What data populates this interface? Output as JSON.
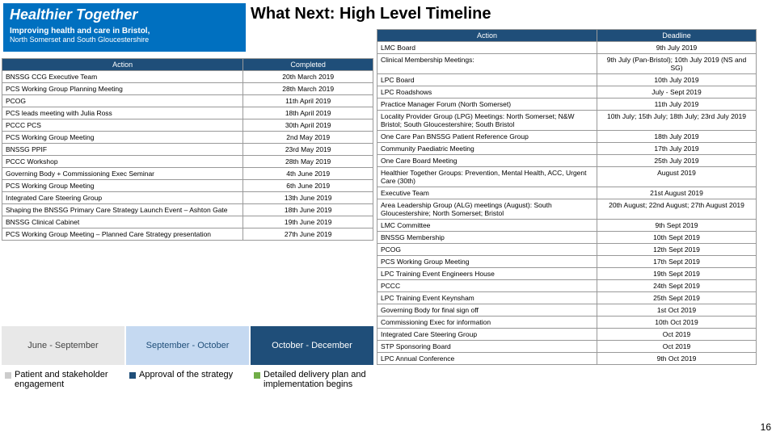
{
  "logo": {
    "main": "Healthier Together",
    "sub1": "Improving health and care in Bristol,",
    "sub2": "North Somerset and South Gloucestershire"
  },
  "title": "What Next: High Level Timeline",
  "page_num": "16",
  "left_table": {
    "headers": [
      "Action",
      "Completed"
    ],
    "rows": [
      [
        "BNSSG CCG Executive Team",
        "20th March 2019"
      ],
      [
        "PCS Working Group Planning Meeting",
        "28th March 2019"
      ],
      [
        "PCOG",
        "11th April 2019"
      ],
      [
        "PCS leads meeting with Julia Ross",
        "18th April 2019"
      ],
      [
        "PCCC PCS",
        "30th April 2019"
      ],
      [
        "PCS Working Group Meeting",
        "2nd May 2019"
      ],
      [
        "BNSSG PPIF",
        "23rd May 2019"
      ],
      [
        "PCCC Workshop",
        "28th May 2019"
      ],
      [
        "Governing Body + Commissioning Exec Seminar",
        "4th June 2019"
      ],
      [
        "PCS Working Group Meeting",
        "6th June 2019"
      ],
      [
        "Integrated Care Steering Group",
        "13th June 2019"
      ],
      [
        "Shaping the BNSSG Primary Care Strategy Launch Event – Ashton Gate",
        "18th June 2019"
      ],
      [
        "BNSSG Clinical Cabinet",
        "19th June 2019"
      ],
      [
        "PCS Working Group Meeting – Planned Care Strategy presentation",
        "27th June 2019"
      ]
    ]
  },
  "right_table": {
    "headers": [
      "Action",
      "Deadline"
    ],
    "rows": [
      [
        "LMC Board",
        "9th July 2019"
      ],
      [
        "Clinical Membership Meetings:",
        "9th July (Pan-Bristol); 10th July 2019 (NS and SG)"
      ],
      [
        "LPC Board",
        "10th July 2019"
      ],
      [
        "LPC Roadshows",
        "July - Sept 2019"
      ],
      [
        "Practice Manager Forum (North Somerset)",
        "11th July 2019"
      ],
      [
        "Locality Provider Group (LPG) Meetings:\nNorth Somerset; N&W Bristol; South Gloucestershire; South Bristol",
        "10th July; 15th July; 18th July; 23rd July 2019"
      ],
      [
        "One Care Pan BNSSG Patient Reference Group",
        "18th July 2019"
      ],
      [
        "Community Paediatric Meeting",
        "17th July 2019"
      ],
      [
        "One Care Board Meeting",
        "25th July 2019"
      ],
      [
        "Healthier Together Groups: Prevention, Mental Health, ACC, Urgent Care (30th)",
        "August 2019"
      ],
      [
        "Executive Team",
        "21st August 2019"
      ],
      [
        "Area Leadership Group (ALG) meetings (August): South Gloucestershire; North Somerset; Bristol",
        "20th August; 22nd August; 27th August 2019"
      ],
      [
        "LMC Committee",
        "9th Sept 2019"
      ],
      [
        "BNSSG Membership",
        "10th Sept 2019"
      ],
      [
        "PCOG",
        "12th Sept 2019"
      ],
      [
        "PCS Working Group Meeting",
        "17th Sept 2019"
      ],
      [
        "LPC Training Event Engineers House",
        "19th Sept 2019"
      ],
      [
        "PCCC",
        "24th Sept 2019"
      ],
      [
        "LPC Training Event Keynsham",
        "25th Sept 2019"
      ],
      [
        "Governing Body for final sign off",
        "1st Oct 2019"
      ],
      [
        "Commissioning Exec for information",
        "10th Oct 2019"
      ],
      [
        "Integrated Care Steering Group",
        "Oct 2019"
      ],
      [
        "STP Sponsoring Board",
        "Oct 2019"
      ],
      [
        "LPC Annual Conference",
        "9th Oct 2019"
      ]
    ]
  },
  "phases": [
    {
      "period": "June - September",
      "body": "Patient and stakeholder engagement"
    },
    {
      "period": "September - October",
      "body": "Approval of the strategy"
    },
    {
      "period": "October - December",
      "body": "Detailed delivery plan and implementation begins"
    }
  ]
}
